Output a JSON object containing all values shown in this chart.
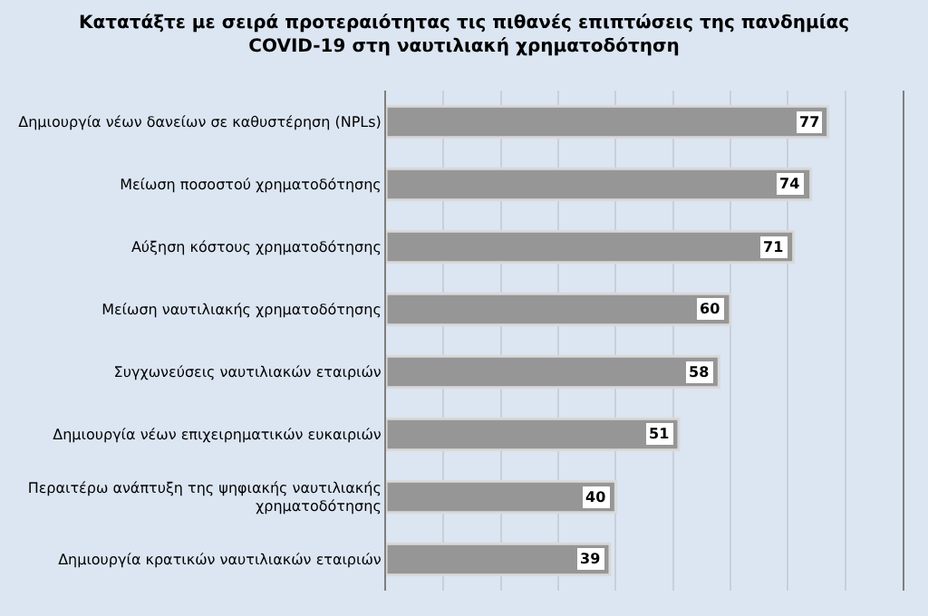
{
  "chart_data": {
    "type": "bar",
    "orientation": "horizontal",
    "title": "Κατατάξτε με σειρά προτεραιότητας τις πιθανές επιπτώσεις της πανδημίας\nCOVID-19 στη ναυτιλιακή χρηματοδότηση",
    "categories": [
      "Δημιουργία νέων δανείων σε καθυστέρηση (NPLs)",
      "Μείωση ποσοστού χρηματοδότησης",
      "Αύξηση κόστους χρηματοδότησης",
      "Μείωση ναυτιλιακής χρηματοδότησης",
      "Συγχωνεύσεις ναυτιλιακών εταιριών",
      "Δημιουργία νέων επιχειρηματικών ευκαιριών",
      "Περαιτέρω ανάπτυξη της ψηφιακής ναυτιλιακής\nχρηματοδότησης",
      "Δημιουργία κρατικών ναυτιλιακών εταιριών"
    ],
    "values": [
      77,
      74,
      71,
      60,
      58,
      51,
      40,
      39
    ],
    "color": "#969696",
    "xlim": [
      0,
      90
    ],
    "xticks": [
      {
        "value": 0,
        "label": null
      },
      {
        "value": 10,
        "label": null
      },
      {
        "value": 20,
        "label": null
      },
      {
        "value": 30,
        "label": null
      },
      {
        "value": 40,
        "label": null
      },
      {
        "value": 50,
        "label": null
      },
      {
        "value": 60,
        "label": null
      },
      {
        "value": 70,
        "label": null
      },
      {
        "value": 80,
        "label": null
      },
      {
        "value": 90,
        "label": null
      }
    ],
    "grid": "x",
    "tick_labels": "y",
    "data_labels": true,
    "legend": false
  }
}
